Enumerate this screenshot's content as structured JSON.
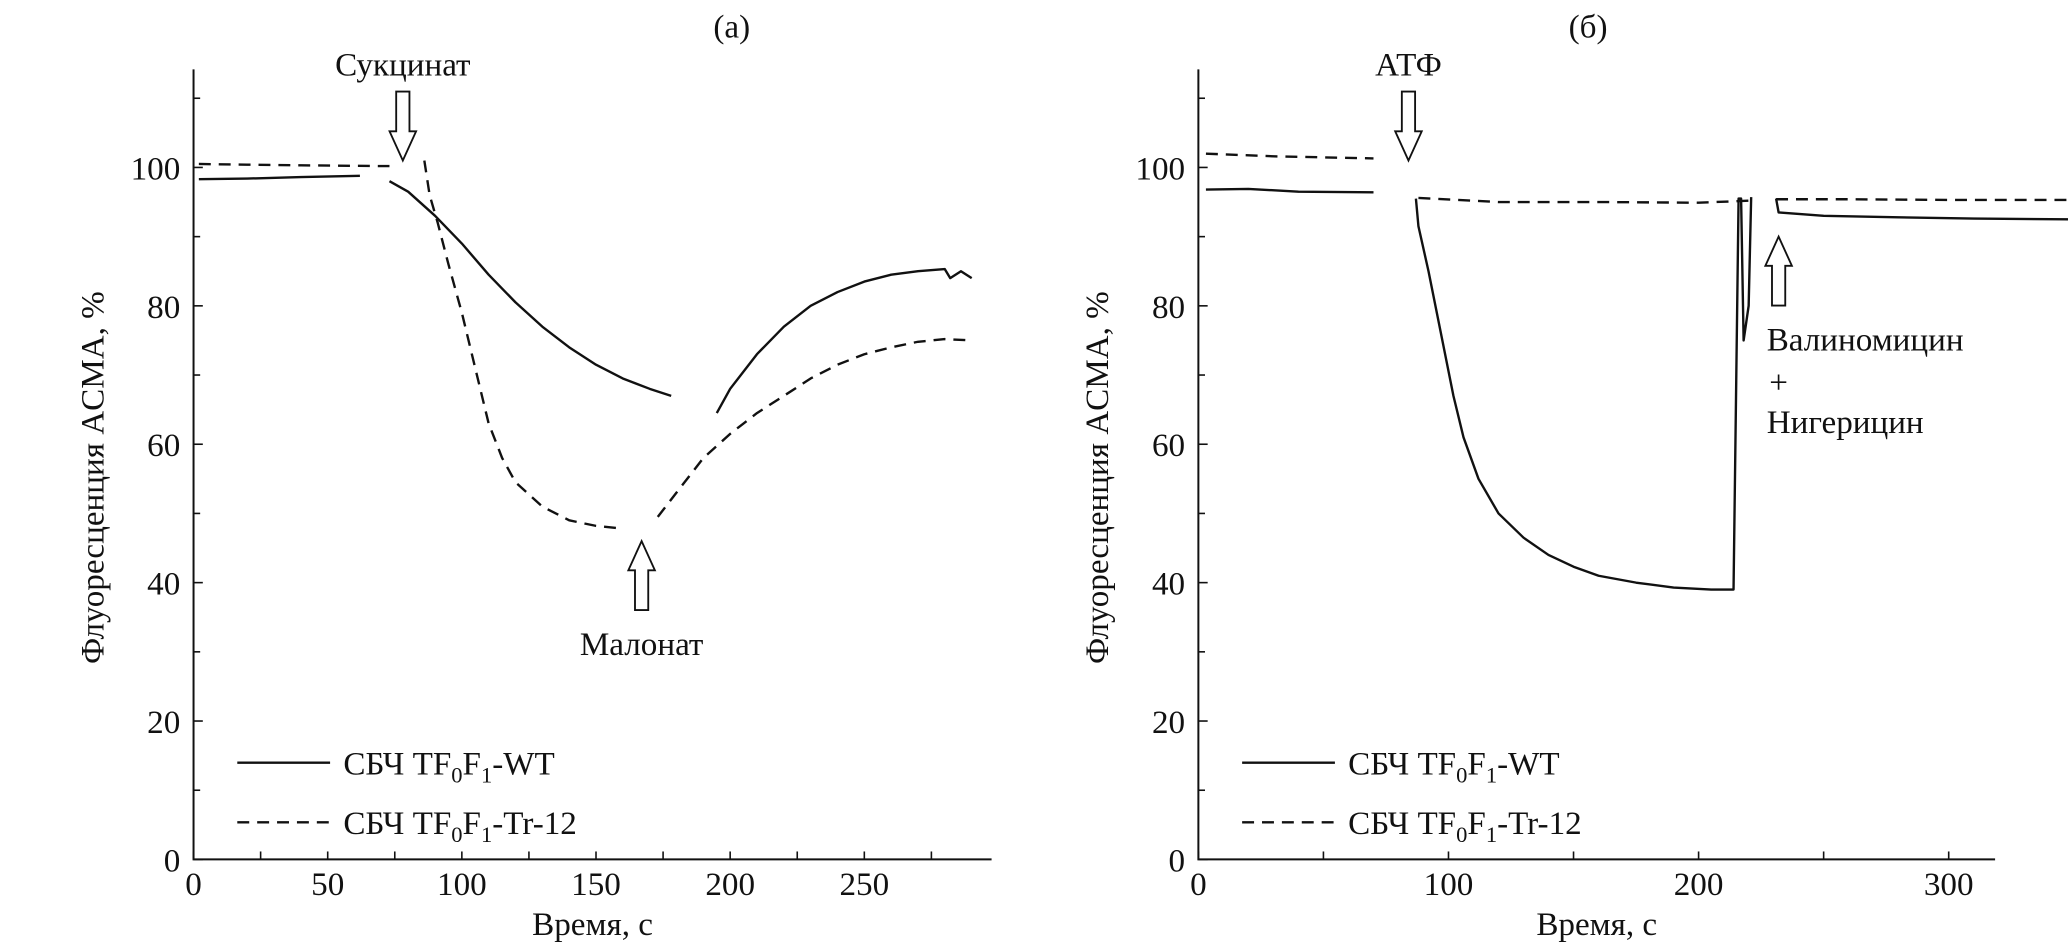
{
  "chart_data": [
    {
      "type": "line",
      "panel_label": "(a)",
      "xlabel": "Время, с",
      "ylabel": "Флуоресценция ACMA, %",
      "xlim": [
        0,
        295
      ],
      "ylim": [
        0,
        115
      ],
      "xticks": [
        0,
        50,
        100,
        150,
        200,
        250
      ],
      "yticks": [
        0,
        20,
        40,
        60,
        80,
        100
      ],
      "legend_position": "bottom-left",
      "series": [
        {
          "name": "СБЧ TF0F1-WT",
          "style": "solid",
          "segments": [
            [
              [
                2,
                98.3
              ],
              [
                20,
                98.4
              ],
              [
                40,
                98.6
              ],
              [
                62,
                98.8
              ]
            ],
            [
              [
                73,
                98
              ],
              [
                80,
                96.5
              ],
              [
                90,
                93
              ],
              [
                100,
                89
              ],
              [
                110,
                84.5
              ],
              [
                120,
                80.5
              ],
              [
                130,
                77
              ],
              [
                140,
                74
              ],
              [
                150,
                71.5
              ],
              [
                160,
                69.5
              ],
              [
                170,
                68
              ],
              [
                178,
                67
              ]
            ],
            [
              [
                195,
                64.5
              ],
              [
                200,
                68
              ],
              [
                210,
                73
              ],
              [
                220,
                77
              ],
              [
                230,
                80
              ],
              [
                240,
                82
              ],
              [
                250,
                83.5
              ],
              [
                260,
                84.5
              ],
              [
                270,
                85
              ],
              [
                280,
                85.3
              ],
              [
                282,
                84
              ],
              [
                286,
                85
              ],
              [
                290,
                84
              ]
            ]
          ]
        },
        {
          "name": "СБЧ TF0F1-Tr-12",
          "style": "dashed",
          "segments": [
            [
              [
                2,
                100.5
              ],
              [
                20,
                100.4
              ],
              [
                40,
                100.3
              ],
              [
                73,
                100.2
              ]
            ],
            [
              [
                86,
                101
              ],
              [
                88,
                96
              ],
              [
                91,
                92
              ],
              [
                95,
                86
              ],
              [
                100,
                79
              ],
              [
                105,
                71
              ],
              [
                110,
                63
              ],
              [
                115,
                58
              ],
              [
                120,
                54.5
              ],
              [
                130,
                51
              ],
              [
                140,
                49
              ],
              [
                150,
                48.2
              ],
              [
                160,
                47.8
              ]
            ],
            [
              [
                173,
                49.5
              ],
              [
                180,
                53
              ],
              [
                190,
                58
              ],
              [
                200,
                61.5
              ],
              [
                210,
                64.5
              ],
              [
                220,
                67
              ],
              [
                230,
                69.5
              ],
              [
                240,
                71.5
              ],
              [
                250,
                73
              ],
              [
                260,
                74
              ],
              [
                270,
                74.8
              ],
              [
                280,
                75.2
              ],
              [
                290,
                75
              ]
            ]
          ]
        }
      ],
      "annotations": [
        {
          "text": "Сукцинат",
          "x": 78,
          "direction": "down",
          "y": 101
        },
        {
          "text": "Малонат",
          "x": 167,
          "direction": "up",
          "y": 46
        }
      ],
      "legend": [
        "СБЧ TF0F1-WT",
        "СБЧ TF0F1-Tr-12"
      ]
    },
    {
      "type": "line",
      "panel_label": "(б)",
      "xlabel": "Время, с",
      "ylabel": "Флуоресценция ACMA, %",
      "xlim": [
        0,
        360
      ],
      "ylim": [
        0,
        115
      ],
      "xticks": [
        0,
        100,
        200,
        300
      ],
      "yticks": [
        0,
        20,
        40,
        60,
        80,
        100
      ],
      "legend_position": "bottom-left",
      "series": [
        {
          "name": "СБЧ TF0F1-WT",
          "style": "solid",
          "segments": [
            [
              [
                3,
                96.8
              ],
              [
                20,
                96.9
              ],
              [
                40,
                96.5
              ],
              [
                70,
                96.4
              ]
            ],
            [
              [
                87,
                95.5
              ],
              [
                88,
                91.5
              ],
              [
                92,
                85
              ],
              [
                97,
                76
              ],
              [
                102,
                67
              ],
              [
                106,
                61
              ],
              [
                112,
                55
              ],
              [
                120,
                50
              ],
              [
                130,
                46.5
              ],
              [
                140,
                44
              ],
              [
                150,
                42.3
              ],
              [
                160,
                41
              ],
              [
                175,
                40
              ],
              [
                190,
                39.3
              ],
              [
                205,
                39
              ],
              [
                214,
                39
              ],
              [
                216,
                95.5
              ],
              [
                217,
                95.5
              ],
              [
                218,
                75
              ],
              [
                220,
                80
              ],
              [
                221,
                95.7
              ]
            ],
            [
              [
                231,
                95.5
              ],
              [
                232,
                93.5
              ],
              [
                250,
                93
              ],
              [
                280,
                92.8
              ],
              [
                310,
                92.6
              ],
              [
                350,
                92.5
              ]
            ]
          ]
        },
        {
          "name": "СБЧ TF0F1-Tr-12",
          "style": "dashed",
          "segments": [
            [
              [
                3,
                102
              ],
              [
                30,
                101.6
              ],
              [
                70,
                101.3
              ]
            ],
            [
              [
                88,
                95.6
              ],
              [
                120,
                95
              ],
              [
                160,
                95
              ],
              [
                200,
                94.9
              ],
              [
                220,
                95.2
              ]
            ],
            [
              [
                231,
                95.4
              ],
              [
                260,
                95.4
              ],
              [
                300,
                95.3
              ],
              [
                350,
                95.3
              ]
            ]
          ]
        }
      ],
      "annotations": [
        {
          "text": "АТФ",
          "x": 84,
          "direction": "down",
          "y": 101
        },
        {
          "text": "Валиномицин",
          "text2": "+",
          "text3": "Нигерицин",
          "x": 232,
          "direction": "up",
          "y": 90
        }
      ],
      "legend": [
        "СБЧ TF0F1-WT",
        "СБЧ TF0F1-Tr-12"
      ]
    }
  ]
}
